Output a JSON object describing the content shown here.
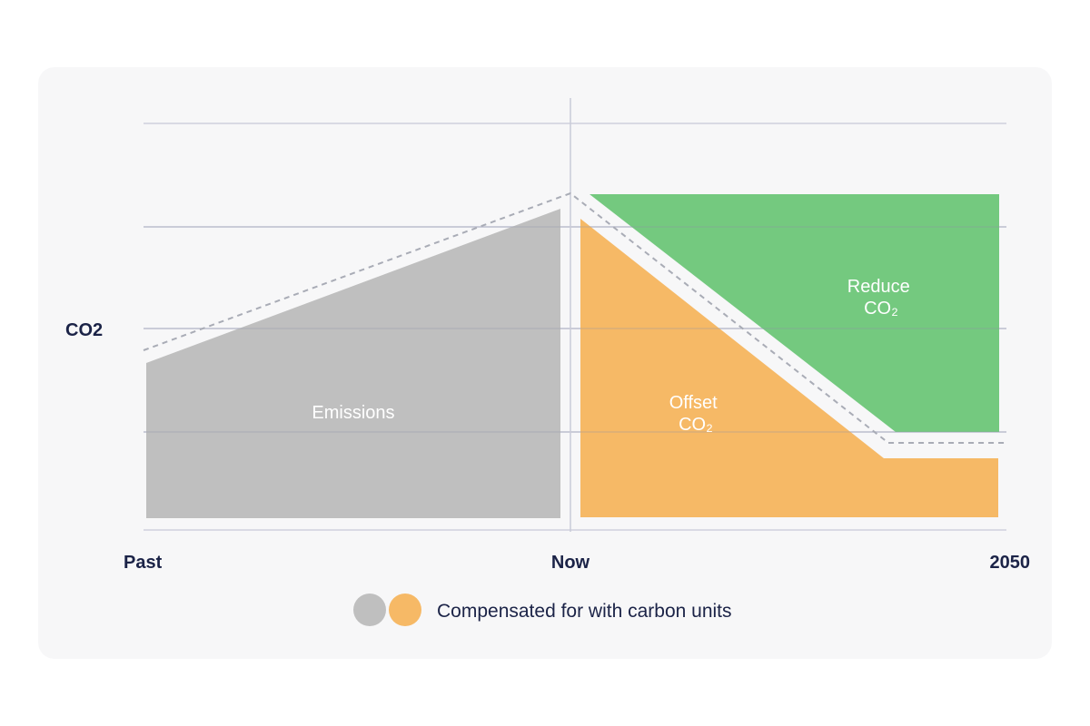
{
  "chart_data": {
    "type": "area",
    "ylabel": "CO2",
    "x_ticks": [
      "Past",
      "Now",
      "2050"
    ],
    "grid": true,
    "areas": [
      {
        "name": "Emissions",
        "lines": [
          "Emissions"
        ],
        "color": "#bfbfbf"
      },
      {
        "name": "Offset CO₂",
        "lines": [
          "Offset",
          "CO₂"
        ],
        "color": "#f6b966"
      },
      {
        "name": "Reduce CO₂",
        "lines": [
          "Reduce",
          "CO₂"
        ],
        "color": "#74c97f"
      }
    ],
    "legend": {
      "text": "Compensated for with carbon units",
      "colors": [
        "#bfbfbf",
        "#f6b966"
      ],
      "position": "bottom"
    }
  }
}
